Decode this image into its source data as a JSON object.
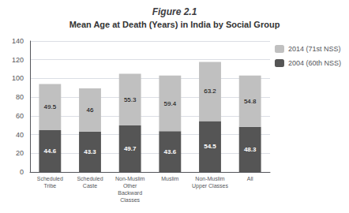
{
  "chart_data": {
    "type": "bar",
    "title": "Figure 2.1",
    "subtitle": "Mean Age at Death (Years) in India by Social Group",
    "categories": [
      "Scheduled\nTribe",
      "Scheduled\nCaste",
      "Non-Muslim\nOther\nBackward\nClasses",
      "Muslim",
      "Non-Muslim\nUpper Classes",
      "All"
    ],
    "series": [
      {
        "name": "2004 (60th NSS)",
        "color": "#555555",
        "values": [
          44.6,
          43.3,
          49.7,
          43.6,
          54.5,
          48.3
        ]
      },
      {
        "name": "2014 (71st NSS)",
        "color": "#c0c0c0",
        "values": [
          49.5,
          46.0,
          55.3,
          59.4,
          63.2,
          54.8
        ]
      }
    ],
    "ylim": [
      0,
      140
    ],
    "yticks": [
      0,
      20,
      40,
      60,
      80,
      100,
      120,
      140
    ],
    "grid": true,
    "stacked": true,
    "data_labels": true,
    "legend": "right"
  }
}
